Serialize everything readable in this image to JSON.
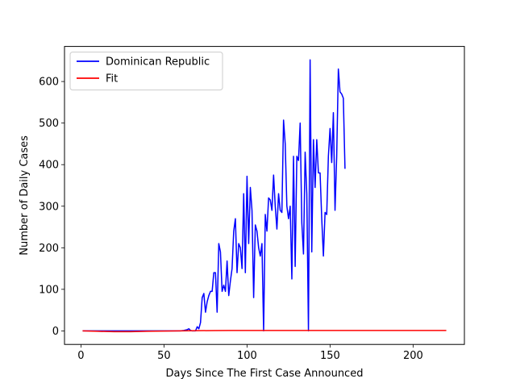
{
  "chart_data": {
    "type": "line",
    "xlabel": "Days Since The First Case Announced",
    "ylabel": "Number of Daily Cases",
    "xlim": [
      -9.9,
      230.9
    ],
    "ylim": [
      -32.6,
      684.4
    ],
    "xticks": [
      0,
      50,
      100,
      150,
      200
    ],
    "yticks": [
      0,
      100,
      200,
      300,
      400,
      500,
      600
    ],
    "grid": false,
    "legend_position": "upper left",
    "series": [
      {
        "name": "Dominican Republic",
        "color": "#0000ff",
        "x": [
          1,
          10,
          20,
          30,
          40,
          50,
          60,
          62,
          64,
          65,
          66,
          67,
          68,
          69,
          70,
          71,
          72,
          73,
          74,
          75,
          76,
          77,
          78,
          79,
          80,
          81,
          82,
          83,
          84,
          85,
          86,
          87,
          88,
          89,
          90,
          91,
          92,
          93,
          94,
          95,
          96,
          97,
          98,
          99,
          100,
          101,
          102,
          103,
          104,
          105,
          106,
          107,
          108,
          109,
          110,
          111,
          112,
          113,
          114,
          115,
          116,
          117,
          118,
          119,
          120,
          121,
          122,
          123,
          124,
          125,
          126,
          127,
          128,
          129,
          130,
          131,
          132,
          133,
          134,
          135,
          136,
          137,
          138,
          139,
          140,
          141,
          142,
          143,
          144,
          145,
          146,
          147,
          148,
          149,
          150,
          151,
          152,
          153,
          154,
          155,
          156,
          157,
          158,
          159
        ],
        "y": [
          0,
          0,
          0,
          0,
          0,
          0,
          0,
          1,
          3,
          5,
          1,
          0,
          0,
          0,
          10,
          5,
          20,
          80,
          90,
          45,
          70,
          85,
          95,
          95,
          140,
          140,
          45,
          210,
          190,
          95,
          110,
          95,
          168,
          85,
          120,
          150,
          240,
          270,
          140,
          210,
          200,
          150,
          330,
          140,
          372,
          210,
          345,
          290,
          80,
          255,
          240,
          200,
          180,
          210,
          0,
          280,
          240,
          320,
          315,
          290,
          375,
          300,
          245,
          330,
          290,
          285,
          507,
          450,
          300,
          270,
          300,
          125,
          420,
          155,
          420,
          410,
          500,
          260,
          185,
          430,
          330,
          0,
          652,
          190,
          460,
          345,
          460,
          380,
          380,
          270,
          180,
          285,
          280,
          420,
          487,
          405,
          525,
          290,
          420,
          630,
          575,
          570,
          560,
          390
        ]
      },
      {
        "name": "Fit",
        "color": "#ff0000",
        "x": [
          1,
          10,
          20,
          30,
          40,
          50,
          60,
          70,
          80,
          90,
          100,
          120,
          140,
          160,
          180,
          200,
          220
        ],
        "y": [
          0,
          -1,
          -2,
          -2,
          -1,
          -0.5,
          0,
          0.5,
          0.8,
          1,
          1,
          1,
          1,
          1,
          1,
          1,
          1
        ]
      }
    ]
  }
}
